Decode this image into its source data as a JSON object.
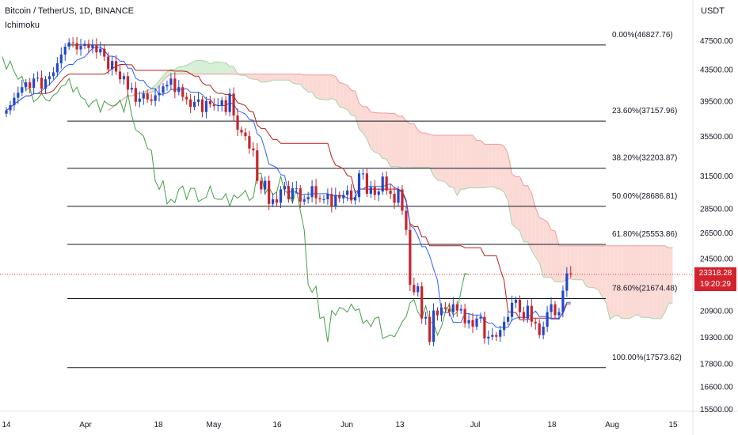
{
  "header": {
    "title": "Bitcoin / TetherUS, 1D, BINANCE",
    "indicator": "Ichimoku",
    "unit": "USDT"
  },
  "price_label": {
    "value": "23318.28",
    "countdown": "19:20:29"
  },
  "colors": {
    "up": "#2447c8",
    "down": "#c5252b",
    "conversion_line": "#2962ff",
    "base_line": "#b71c1c",
    "lagging_span": "#43a047",
    "cloud_bull_fill": "#d6efd6",
    "cloud_bear_fill": "#fbdad6",
    "fib_line": "#131722",
    "price_line": "#e53935"
  },
  "chart_data": {
    "type": "candlestick",
    "symbol": "Bitcoin / TetherUS",
    "timeframe": "1D",
    "exchange": "BINANCE",
    "y_axis": {
      "scale": "log",
      "range": [
        15000,
        52000
      ],
      "ticks": [
        "47500.00",
        "43500.00",
        "39500.00",
        "35500.00",
        "31500.00",
        "28500.00",
        "26500.00",
        "24500.00",
        "20900.00",
        "19300.00",
        "17800.00",
        "16600.00",
        "15500.00"
      ]
    },
    "x_axis": {
      "ticks": [
        "14",
        "Apr",
        "18",
        "May",
        "16",
        "Jun",
        "13",
        "Jul",
        "18",
        "Aug",
        "15"
      ]
    },
    "fib_levels": [
      {
        "label": "0.00%(46827.76)",
        "value": 46827.76
      },
      {
        "label": "23.60%(37157.96)",
        "value": 37157.96
      },
      {
        "label": "38.20%(32203.87)",
        "value": 32203.87
      },
      {
        "label": "50.00%(28686.81)",
        "value": 28686.81
      },
      {
        "label": "61.80%(25553.86)",
        "value": 25553.86
      },
      {
        "label": "78.60%(21674.48)",
        "value": 21674.48
      },
      {
        "label": "100.00%(17573.62)",
        "value": 17573.62
      }
    ],
    "last_price": 23318.28,
    "close_series": [
      38400,
      39000,
      39900,
      40500,
      41200,
      41800,
      41100,
      42300,
      42400,
      41000,
      42200,
      42600,
      43100,
      44300,
      45500,
      46600,
      47200,
      47100,
      46200,
      46700,
      47000,
      46400,
      46900,
      45800,
      46300,
      45200,
      43500,
      44600,
      43200,
      42200,
      42600,
      40900,
      41100,
      39400,
      39800,
      40400,
      39700,
      39500,
      40200,
      40500,
      41300,
      41500,
      42300,
      40600,
      41200,
      40000,
      39700,
      38800,
      39400,
      39700,
      38200,
      39500,
      39100,
      38900,
      39000,
      39600,
      38200,
      40400,
      37800,
      36200,
      35900,
      35500,
      34200,
      34000,
      31000,
      30200,
      31000,
      28900,
      29300,
      29000,
      30200,
      30500,
      29300,
      30300,
      30300,
      29100,
      29300,
      29500,
      30500,
      29400,
      29300,
      29300,
      29800,
      28700,
      29700,
      29400,
      29700,
      30100,
      29200,
      29500,
      31700,
      31700,
      29800,
      30400,
      29700,
      30000,
      31400,
      30100,
      29800,
      29000,
      30200,
      28300,
      26700,
      22600,
      22100,
      22500,
      20400,
      20500,
      19000,
      20900,
      20600,
      21100,
      21000,
      20800,
      21300,
      20900,
      21000,
      20100,
      20300,
      19900,
      20400,
      20500,
      19200,
      19300,
      19400,
      19300,
      19700,
      20200,
      20500,
      21400,
      21600,
      20800,
      20400,
      21200,
      20200,
      20100,
      19400,
      19900,
      20800,
      21300,
      20600,
      20800,
      22200,
      23400,
      23318
    ]
  }
}
